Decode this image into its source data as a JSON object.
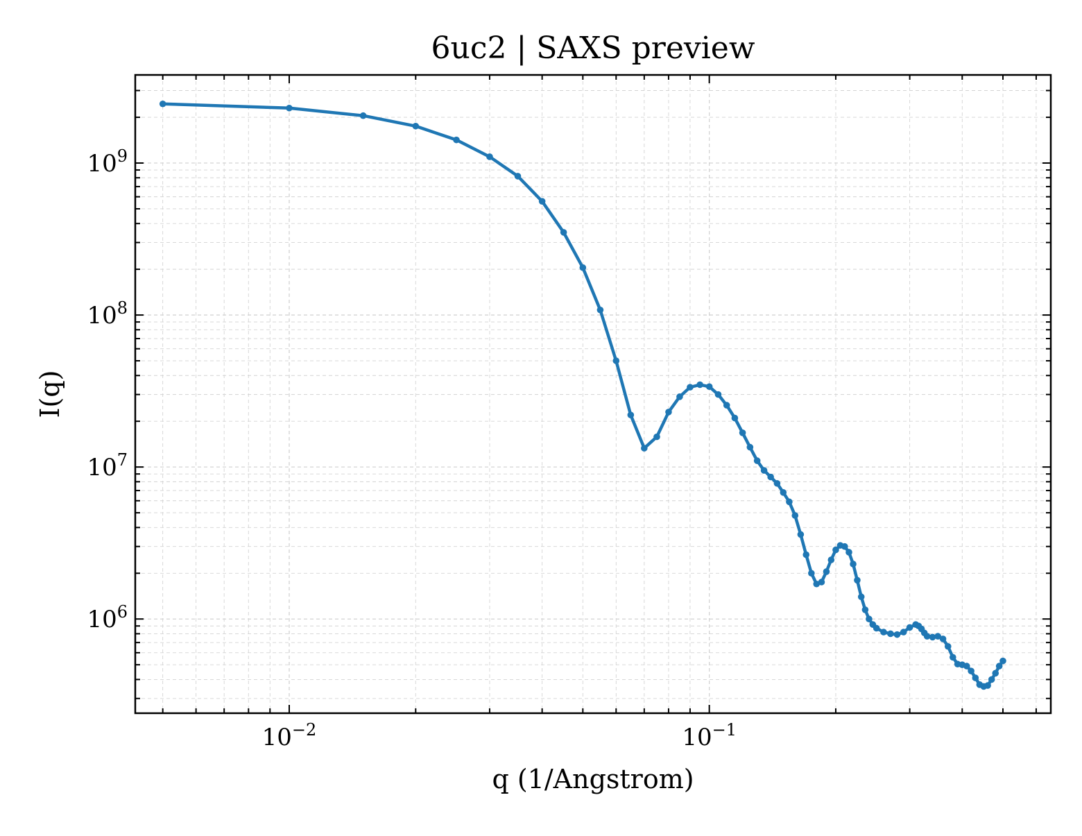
{
  "chart_data": {
    "type": "line",
    "title": "6uc2 | SAXS preview",
    "xlabel": "q (1/Angstrom)",
    "ylabel": "I(q)",
    "xscale": "log",
    "yscale": "log",
    "xlim": [
      0.0043,
      0.65
    ],
    "ylim": [
      240000,
      3800000000
    ],
    "grid": "major and minor, dashed, light gray",
    "legend": "none",
    "x_ticks": [
      {
        "value": 0.01,
        "base": "10",
        "exp": "−2"
      },
      {
        "value": 0.1,
        "base": "10",
        "exp": "−1"
      }
    ],
    "y_ticks": [
      {
        "value": 1000000,
        "base": "10",
        "exp": "6"
      },
      {
        "value": 10000000,
        "base": "10",
        "exp": "7"
      },
      {
        "value": 100000000,
        "base": "10",
        "exp": "8"
      },
      {
        "value": 1000000000,
        "base": "10",
        "exp": "9"
      }
    ],
    "colors": {
      "line": "#1f77b4",
      "grid": "#d3d3d3",
      "axes": "#000000"
    },
    "series": [
      {
        "x": [
          0.005,
          0.01,
          0.015,
          0.02,
          0.025,
          0.03,
          0.035,
          0.04,
          0.045,
          0.05,
          0.055,
          0.06,
          0.065,
          0.07,
          0.075,
          0.08,
          0.085,
          0.09,
          0.095,
          0.1,
          0.105,
          0.11,
          0.115,
          0.12,
          0.125,
          0.13,
          0.135,
          0.14,
          0.145,
          0.15,
          0.155,
          0.16,
          0.165,
          0.17,
          0.175,
          0.18,
          0.185,
          0.19,
          0.195,
          0.2,
          0.205,
          0.21,
          0.215,
          0.22,
          0.225,
          0.23,
          0.235,
          0.24,
          0.245,
          0.25,
          0.26,
          0.27,
          0.28,
          0.29,
          0.3,
          0.31,
          0.315,
          0.32,
          0.325,
          0.33,
          0.34,
          0.35,
          0.36,
          0.37,
          0.38,
          0.39,
          0.4,
          0.41,
          0.42,
          0.43,
          0.44,
          0.45,
          0.46,
          0.47,
          0.48,
          0.49,
          0.5
        ],
        "y": [
          2450000000,
          2300000000,
          2050000000,
          1750000000,
          1420000000,
          1100000000,
          820000000,
          560000000,
          350000000,
          205000000,
          108000000,
          50000000,
          22000000,
          13300000,
          15800000,
          23000000,
          29000000,
          33500000,
          34800000,
          33800000,
          30000000,
          25500000,
          21000000,
          16800000,
          13500000,
          11000000,
          9500000,
          8600000,
          7800000,
          6800000,
          5900000,
          4800000,
          3600000,
          2650000,
          2000000,
          1700000,
          1750000,
          2050000,
          2450000,
          2850000,
          3050000,
          3000000,
          2750000,
          2300000,
          1800000,
          1400000,
          1150000,
          1000000,
          920000,
          870000,
          820000,
          800000,
          790000,
          820000,
          880000,
          920000,
          900000,
          860000,
          810000,
          770000,
          760000,
          770000,
          740000,
          660000,
          560000,
          505000,
          500000,
          490000,
          455000,
          410000,
          370000,
          360000,
          365000,
          400000,
          440000,
          490000,
          530000
        ]
      }
    ]
  }
}
